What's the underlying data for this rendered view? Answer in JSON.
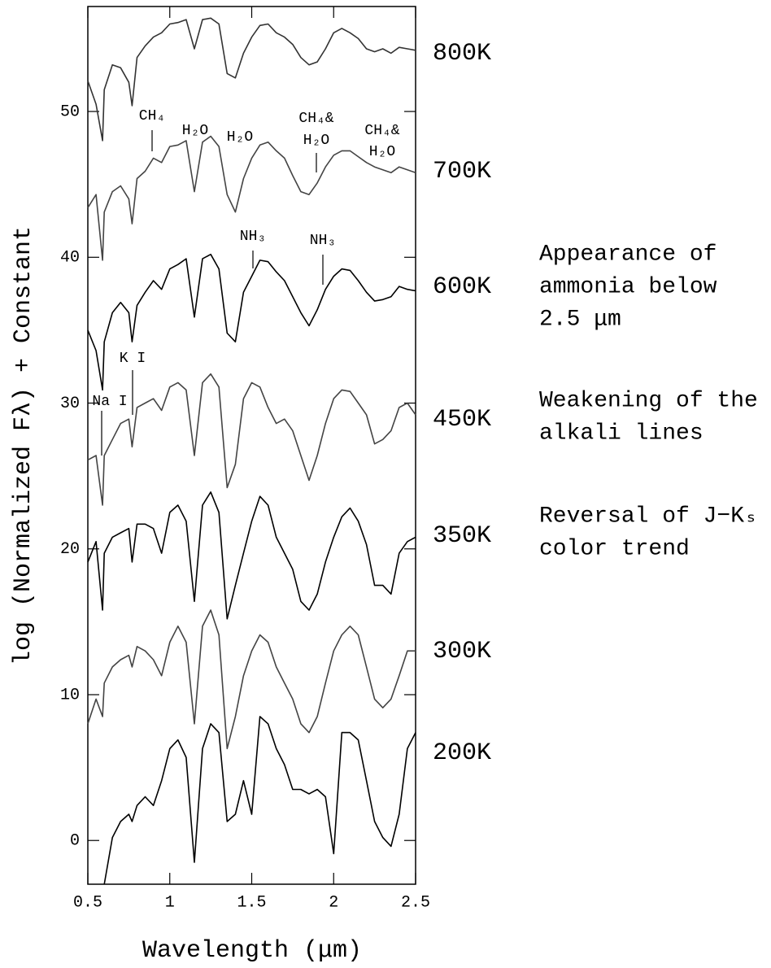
{
  "chart_data": {
    "type": "line",
    "xlabel": "Wavelength (μm)",
    "ylabel": "log (Normalized Fλ) + Constant",
    "xlim": [
      0.5,
      2.5
    ],
    "xticks": [
      0.5,
      1,
      1.5,
      2,
      2.5
    ],
    "ylim": [
      -3,
      57.2
    ],
    "yticks": [
      0,
      10,
      20,
      30,
      40,
      50
    ],
    "x": [
      0.5,
      0.55,
      0.59,
      0.6,
      0.65,
      0.7,
      0.75,
      0.77,
      0.8,
      0.85,
      0.9,
      0.95,
      1.0,
      1.05,
      1.1,
      1.15,
      1.2,
      1.25,
      1.3,
      1.35,
      1.4,
      1.45,
      1.5,
      1.55,
      1.6,
      1.65,
      1.7,
      1.75,
      1.8,
      1.85,
      1.9,
      1.95,
      2.0,
      2.05,
      2.1,
      2.15,
      2.2,
      2.25,
      2.3,
      2.35,
      2.4,
      2.45,
      2.5
    ],
    "series": [
      {
        "name": "800K",
        "color": "#333333",
        "values": [
          52.1,
          50.5,
          48.0,
          51.5,
          53.2,
          53.0,
          52.0,
          50.4,
          53.7,
          54.5,
          55.1,
          55.4,
          56.0,
          56.1,
          56.3,
          54.3,
          56.3,
          56.4,
          56.0,
          52.6,
          52.3,
          54.0,
          55.1,
          55.9,
          56.0,
          55.4,
          55.1,
          54.6,
          53.7,
          53.2,
          53.4,
          54.3,
          55.4,
          55.7,
          55.4,
          55.0,
          54.3,
          54.1,
          54.3,
          54.0,
          54.4,
          54.3,
          54.2
        ]
      },
      {
        "name": "700K",
        "color": "#444444",
        "values": [
          43.4,
          44.3,
          39.8,
          43.1,
          44.5,
          44.9,
          44.0,
          42.3,
          45.4,
          45.9,
          46.8,
          46.5,
          47.6,
          47.7,
          48.0,
          44.5,
          47.9,
          48.3,
          47.6,
          44.3,
          43.1,
          45.4,
          46.8,
          47.7,
          47.9,
          47.3,
          46.8,
          45.6,
          44.5,
          44.3,
          45.1,
          46.2,
          47.0,
          47.3,
          47.3,
          46.9,
          46.5,
          46.2,
          46.0,
          45.8,
          46.2,
          46.0,
          45.8
        ]
      },
      {
        "name": "600K",
        "color": "#000000",
        "values": [
          35.0,
          33.6,
          30.9,
          34.2,
          36.2,
          36.9,
          36.2,
          34.2,
          36.7,
          37.6,
          38.4,
          37.8,
          39.2,
          39.5,
          39.9,
          35.9,
          39.9,
          40.2,
          39.2,
          34.8,
          34.2,
          37.6,
          38.7,
          39.8,
          39.7,
          39.0,
          38.4,
          37.3,
          36.2,
          35.3,
          36.4,
          37.8,
          38.7,
          39.2,
          39.1,
          38.4,
          37.6,
          37.0,
          37.1,
          37.3,
          38.0,
          37.8,
          37.7
        ]
      },
      {
        "name": "450K",
        "color": "#444444",
        "values": [
          26.1,
          26.4,
          23.0,
          26.4,
          27.5,
          28.6,
          28.9,
          27.0,
          29.7,
          30.0,
          30.3,
          29.5,
          31.1,
          31.4,
          30.9,
          26.4,
          31.4,
          32.0,
          31.1,
          24.2,
          25.8,
          30.3,
          31.4,
          31.1,
          29.7,
          28.6,
          28.9,
          28.1,
          26.4,
          24.7,
          26.4,
          28.6,
          30.3,
          30.9,
          30.8,
          30.0,
          29.2,
          27.2,
          27.5,
          28.1,
          29.7,
          30.0,
          29.2
        ]
      },
      {
        "name": "350K",
        "color": "#000000",
        "values": [
          19.1,
          20.5,
          15.8,
          19.7,
          20.8,
          21.1,
          21.4,
          19.1,
          21.7,
          21.7,
          21.4,
          19.7,
          22.5,
          23.0,
          21.9,
          16.4,
          23.0,
          23.9,
          22.5,
          15.2,
          17.5,
          19.7,
          21.9,
          23.6,
          23.0,
          20.8,
          19.7,
          18.6,
          16.4,
          15.8,
          16.9,
          19.1,
          20.8,
          22.2,
          22.8,
          21.9,
          20.3,
          17.5,
          17.5,
          16.9,
          19.7,
          20.5,
          20.8
        ]
      },
      {
        "name": "300K",
        "color": "#444444",
        "values": [
          8.0,
          9.7,
          8.5,
          10.8,
          11.9,
          12.4,
          12.7,
          11.9,
          13.3,
          13.0,
          12.4,
          11.3,
          13.6,
          14.7,
          13.6,
          8.0,
          14.7,
          15.8,
          14.1,
          6.3,
          8.5,
          11.3,
          13.0,
          14.1,
          13.6,
          11.9,
          10.8,
          9.7,
          8.0,
          7.4,
          8.5,
          10.8,
          13.0,
          14.1,
          14.7,
          14.1,
          11.9,
          9.7,
          9.1,
          9.7,
          11.3,
          13.0,
          13.0
        ]
      },
      {
        "name": "200K",
        "color": "#000000",
        "values": [
          null,
          null,
          null,
          -3.0,
          0.2,
          1.3,
          1.8,
          1.3,
          2.4,
          3.0,
          2.4,
          4.1,
          6.3,
          6.9,
          5.7,
          -1.5,
          6.3,
          8.0,
          7.4,
          1.3,
          1.8,
          4.1,
          1.8,
          8.5,
          8.0,
          6.3,
          5.2,
          3.5,
          3.5,
          3.2,
          3.5,
          3.0,
          -0.9,
          7.4,
          7.4,
          6.9,
          4.1,
          1.3,
          0.2,
          -0.4,
          1.8,
          6.3,
          7.4
        ]
      }
    ],
    "annotations": [
      "CH₄",
      "H₂O",
      "H₂O",
      "CH₄&",
      "H₂O",
      "CH₄&",
      "H₂O",
      "NH₃",
      "NH₃",
      "K I",
      "Na I"
    ],
    "notes": [
      [
        "Appearance of",
        "ammonia below",
        "2.5 μm"
      ],
      [
        "Weakening of the",
        "alkali lines"
      ],
      [
        "Reversal of J−Kₛ",
        "color trend"
      ]
    ]
  }
}
